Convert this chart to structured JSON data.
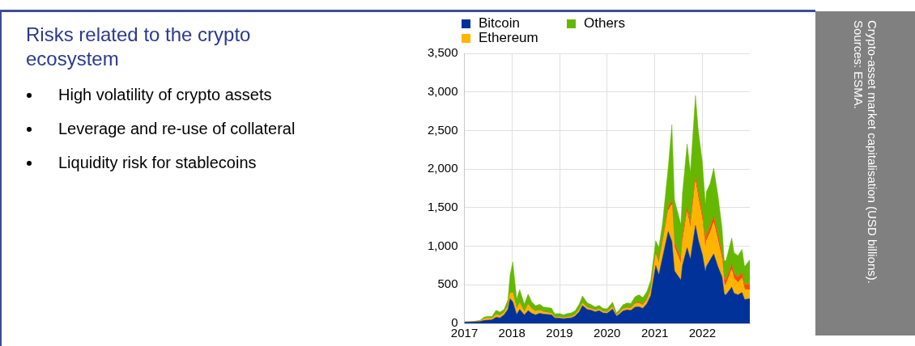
{
  "chart_data": {
    "type": "area",
    "title": "Risks related to the crypto ecosystem",
    "annotations": [
      "High volatility of crypto assets",
      "Leverage and re-use of collateral",
      "Liquidity risk for stablecoins",
      "Crypto-asset market capitalisation (USD billions).",
      "Sources: ESMA."
    ],
    "stacked": true,
    "grid": true,
    "legend": "top",
    "marker": "none",
    "xlim": [
      "2017-01-01",
      "2022-12-31"
    ],
    "xticks": [
      "2017",
      "2018",
      "2019",
      "2020",
      "2021",
      "2022"
    ],
    "ylim": [
      0,
      3500
    ],
    "yticks": [
      0,
      500,
      {
        "value": 1000,
        "label": "1,000"
      },
      {
        "value": 1500,
        "label": "1,500"
      },
      {
        "value": 2000,
        "label": "2,000"
      },
      {
        "value": 2500,
        "label": "2,500"
      },
      {
        "value": 3000,
        "label": "3,000"
      },
      {
        "value": 3500,
        "label": "3,500"
      }
    ],
    "x": [
      "2017-01-01",
      "2017-03-01",
      "2017-05-01",
      "2017-06-01",
      "2017-07-01",
      "2017-08-01",
      "2017-09-01",
      "2017-10-01",
      "2017-11-01",
      "2017-12-01",
      "2017-12-17",
      "2018-01-07",
      "2018-02-06",
      "2018-03-01",
      "2018-04-06",
      "2018-05-05",
      "2018-06-01",
      "2018-07-01",
      "2018-08-01",
      "2018-09-01",
      "2018-10-01",
      "2018-11-01",
      "2018-11-25",
      "2019-01-01",
      "2019-02-01",
      "2019-03-01",
      "2019-04-01",
      "2019-05-01",
      "2019-06-01",
      "2019-06-26",
      "2019-08-01",
      "2019-09-01",
      "2019-10-01",
      "2019-11-01",
      "2019-12-01",
      "2020-01-01",
      "2020-02-12",
      "2020-03-13",
      "2020-04-01",
      "2020-05-01",
      "2020-06-01",
      "2020-07-01",
      "2020-08-01",
      "2020-09-01",
      "2020-10-01",
      "2020-11-01",
      "2020-12-01",
      "2021-01-08",
      "2021-02-01",
      "2021-03-01",
      "2021-04-14",
      "2021-05-12",
      "2021-06-01",
      "2021-07-20",
      "2021-08-01",
      "2021-09-06",
      "2021-10-01",
      "2021-11-09",
      "2021-12-01",
      "2022-01-01",
      "2022-01-24",
      "2022-02-01",
      "2022-03-01",
      "2022-03-29",
      "2022-05-01",
      "2022-06-01",
      "2022-06-18",
      "2022-07-01",
      "2022-08-14",
      "2022-09-01",
      "2022-10-01",
      "2022-11-01",
      "2022-11-21",
      "2022-12-31"
    ],
    "series": [
      {
        "name": "Bitcoin",
        "color": "#003299",
        "values": [
          16,
          19,
          23,
          38,
          41,
          46,
          78,
          72,
          110,
          180,
          320,
          280,
          115,
          180,
          110,
          165,
          130,
          110,
          130,
          120,
          115,
          110,
          70,
          68,
          60,
          67,
          72,
          95,
          150,
          230,
          180,
          170,
          150,
          165,
          135,
          130,
          185,
          95,
          115,
          160,
          175,
          168,
          210,
          215,
          195,
          255,
          360,
          750,
          630,
          850,
          1190,
          1060,
          680,
          560,
          750,
          980,
          830,
          1270,
          1080,
          890,
          670,
          740,
          820,
          900,
          730,
          600,
          380,
          370,
          470,
          390,
          370,
          400,
          310,
          320
        ]
      },
      {
        "name": "Ethereum",
        "color": "#ffb400",
        "values": [
          1,
          2,
          7,
          22,
          26,
          20,
          37,
          29,
          29,
          45,
          70,
          115,
          70,
          85,
          38,
          82,
          58,
          45,
          40,
          28,
          23,
          20,
          12,
          14,
          11,
          14,
          15,
          17,
          27,
          32,
          24,
          19,
          19,
          20,
          16,
          15,
          30,
          12,
          15,
          23,
          26,
          25,
          42,
          48,
          40,
          45,
          68,
          140,
          150,
          180,
          270,
          480,
          310,
          210,
          300,
          460,
          400,
          570,
          540,
          450,
          280,
          330,
          350,
          410,
          340,
          230,
          120,
          130,
          230,
          190,
          160,
          190,
          130,
          115
        ]
      },
      {
        "color": "#ff4b00",
        "values": [
          0,
          0,
          0,
          0,
          0,
          0,
          0,
          1,
          1,
          1,
          1,
          1,
          2,
          2,
          2,
          2,
          2,
          2,
          3,
          3,
          3,
          2,
          2,
          2,
          2,
          2,
          2,
          3,
          3,
          4,
          4,
          4,
          4,
          4,
          4,
          4,
          5,
          5,
          6,
          7,
          9,
          9,
          10,
          13,
          15,
          17,
          19,
          22,
          26,
          35,
          43,
          55,
          62,
          62,
          63,
          67,
          68,
          73,
          75,
          78,
          78,
          78,
          80,
          82,
          83,
          73,
          70,
          66,
          67,
          68,
          68,
          69,
          65,
          70
        ]
      },
      {
        "name": "Others",
        "color": "#65b800",
        "values": [
          1,
          3,
          8,
          22,
          24,
          22,
          55,
          45,
          40,
          80,
          230,
          400,
          130,
          170,
          100,
          130,
          90,
          70,
          75,
          60,
          65,
          65,
          40,
          45,
          38,
          45,
          48,
          50,
          70,
          90,
          60,
          50,
          40,
          45,
          38,
          40,
          55,
          25,
          35,
          50,
          55,
          55,
          80,
          95,
          85,
          95,
          110,
          160,
          180,
          230,
          520,
          980,
          550,
          450,
          570,
          820,
          660,
          1040,
          800,
          670,
          510,
          560,
          560,
          620,
          500,
          330,
          240,
          250,
          340,
          270,
          280,
          300,
          230,
          320
        ]
      }
    ]
  }
}
